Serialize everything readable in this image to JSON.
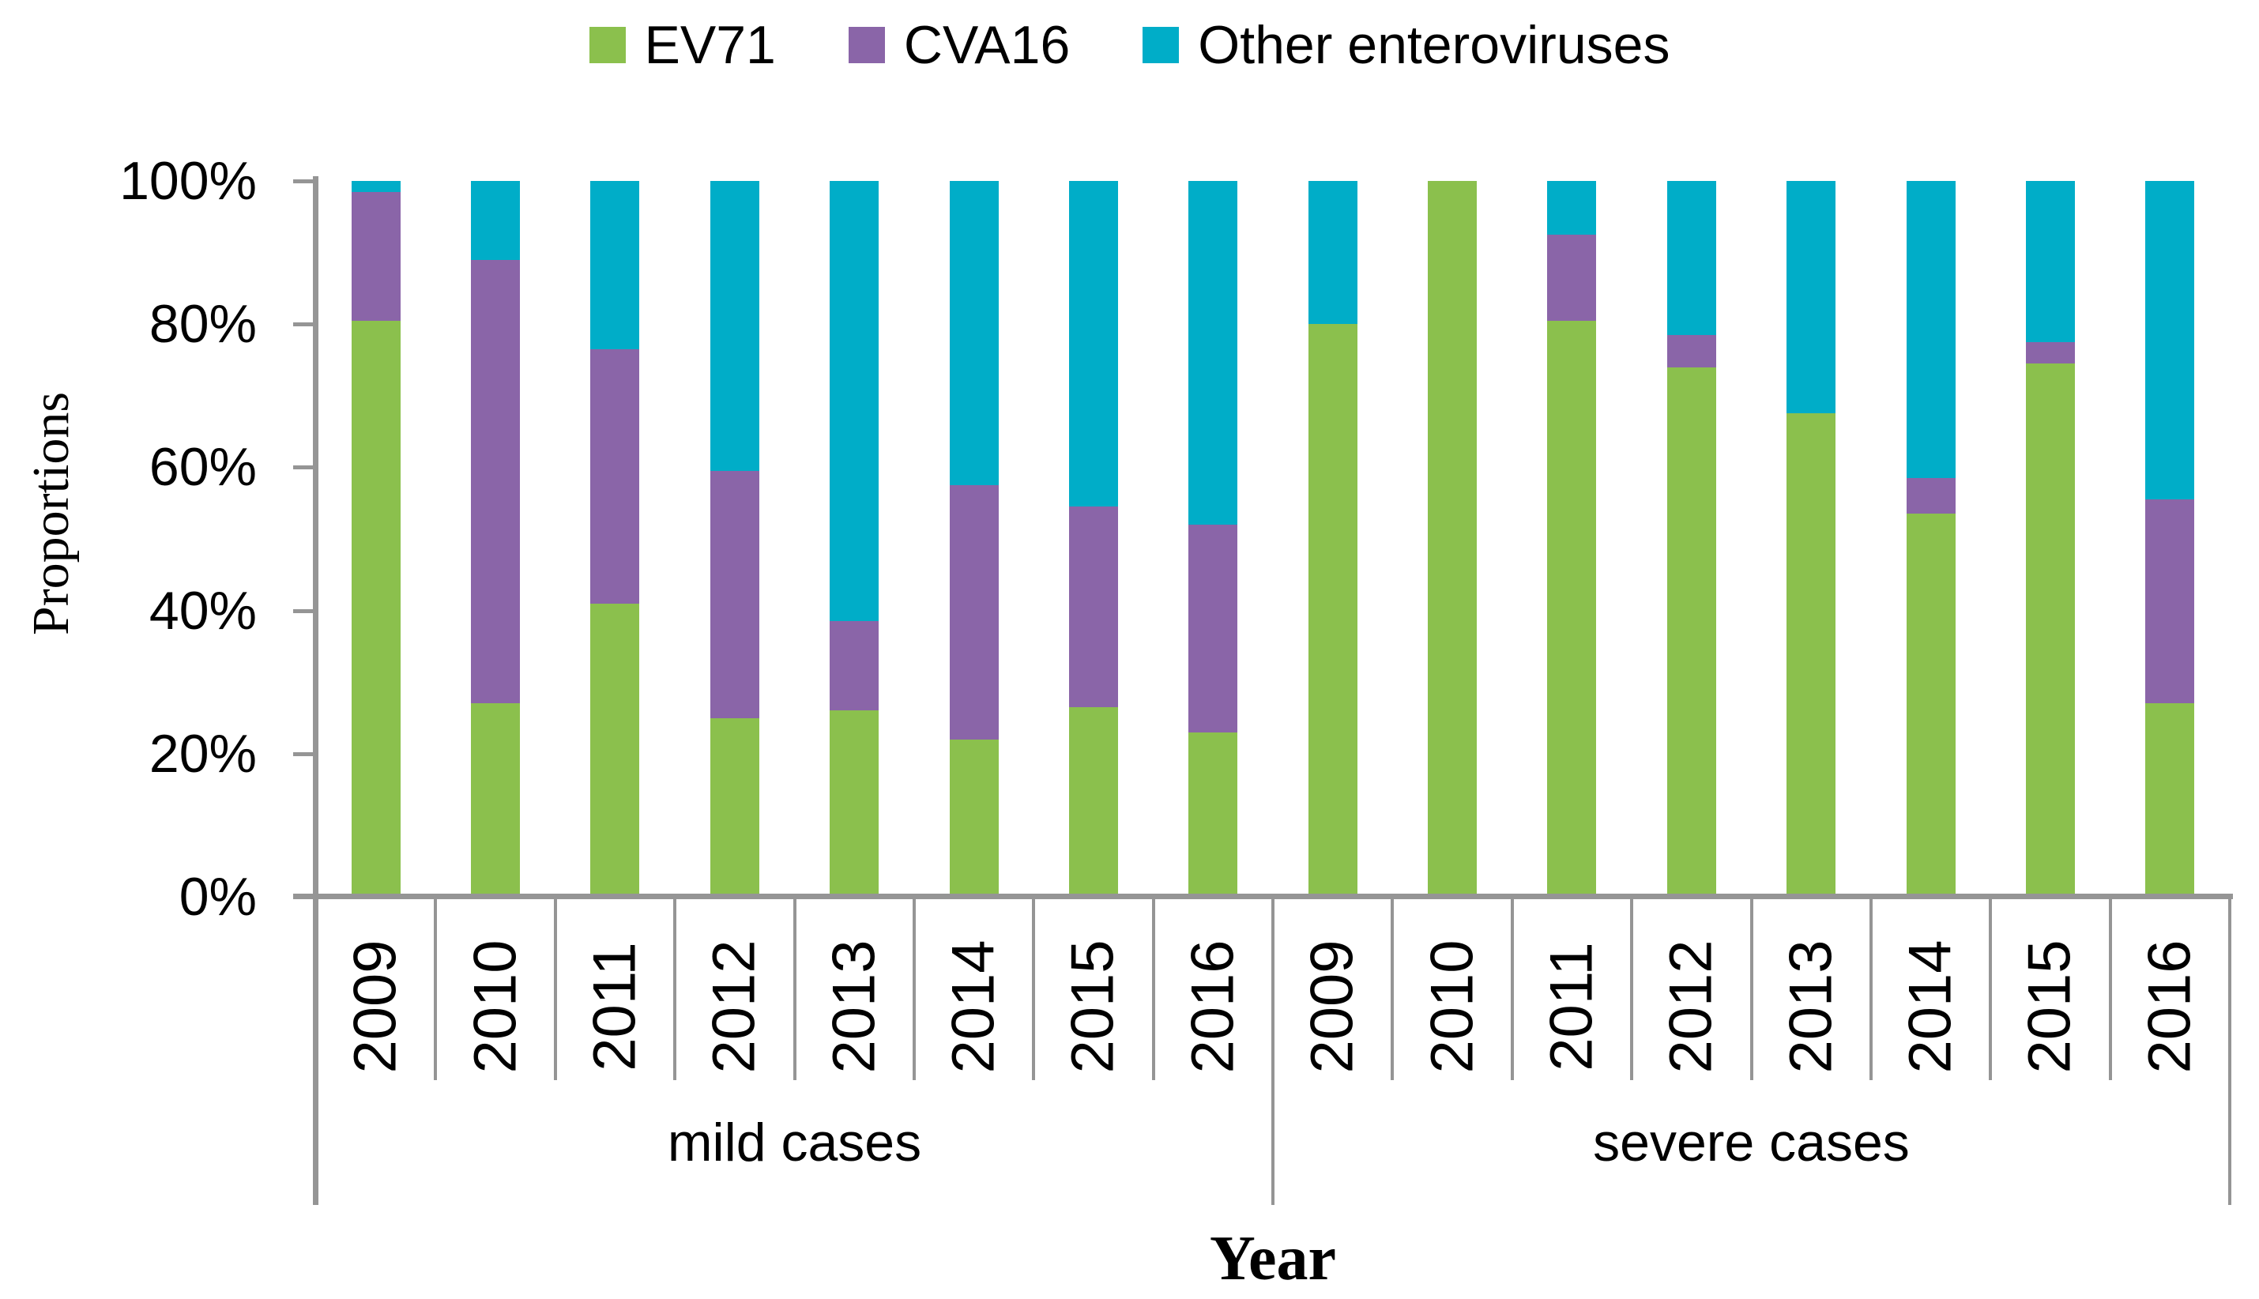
{
  "chart_data": {
    "type": "bar",
    "stacked": true,
    "orientation": "vertical",
    "units": "percent",
    "title": "",
    "ylabel": "Proportions",
    "xlabel": "Year",
    "ylim": [
      0,
      100
    ],
    "ytick_labels": [
      "0%",
      "20%",
      "40%",
      "60%",
      "80%",
      "100%"
    ],
    "grid": false,
    "legend_position": "top-center",
    "axis_color": "#959595",
    "text_color": "#000000",
    "background_color": "#FFFFFF",
    "series_names": [
      "EV71",
      "CVA16",
      "Other enteroviruses"
    ],
    "series_colors": [
      "#8BC04D",
      "#8A65A8",
      "#00ADC8"
    ],
    "groups": [
      {
        "label": "mild cases",
        "categories": [
          "2009",
          "2010",
          "2011",
          "2012",
          "2013",
          "2014",
          "2015",
          "2016"
        ],
        "series": [
          {
            "name": "EV71",
            "values": [
              80.5,
              27,
              41,
              25,
              26,
              22,
              26.5,
              23
            ]
          },
          {
            "name": "CVA16",
            "values": [
              18,
              62,
              35.5,
              34.5,
              12.5,
              35.5,
              28,
              29
            ]
          },
          {
            "name": "Other enteroviruses",
            "values": [
              1.5,
              11,
              23.5,
              40.5,
              61.5,
              42.5,
              45.5,
              48
            ]
          }
        ]
      },
      {
        "label": "severe cases",
        "categories": [
          "2009",
          "2010",
          "2011",
          "2012",
          "2013",
          "2014",
          "2015",
          "2016"
        ],
        "series": [
          {
            "name": "EV71",
            "values": [
              80,
              100,
              80.5,
              74,
              67.5,
              53.5,
              74.5,
              27
            ]
          },
          {
            "name": "CVA16",
            "values": [
              0,
              0,
              12,
              4.5,
              0,
              5,
              3,
              28.5
            ]
          },
          {
            "name": "Other enteroviruses",
            "values": [
              20,
              0,
              7.5,
              21.5,
              32.5,
              41.5,
              22.5,
              44.5
            ]
          }
        ]
      }
    ]
  }
}
